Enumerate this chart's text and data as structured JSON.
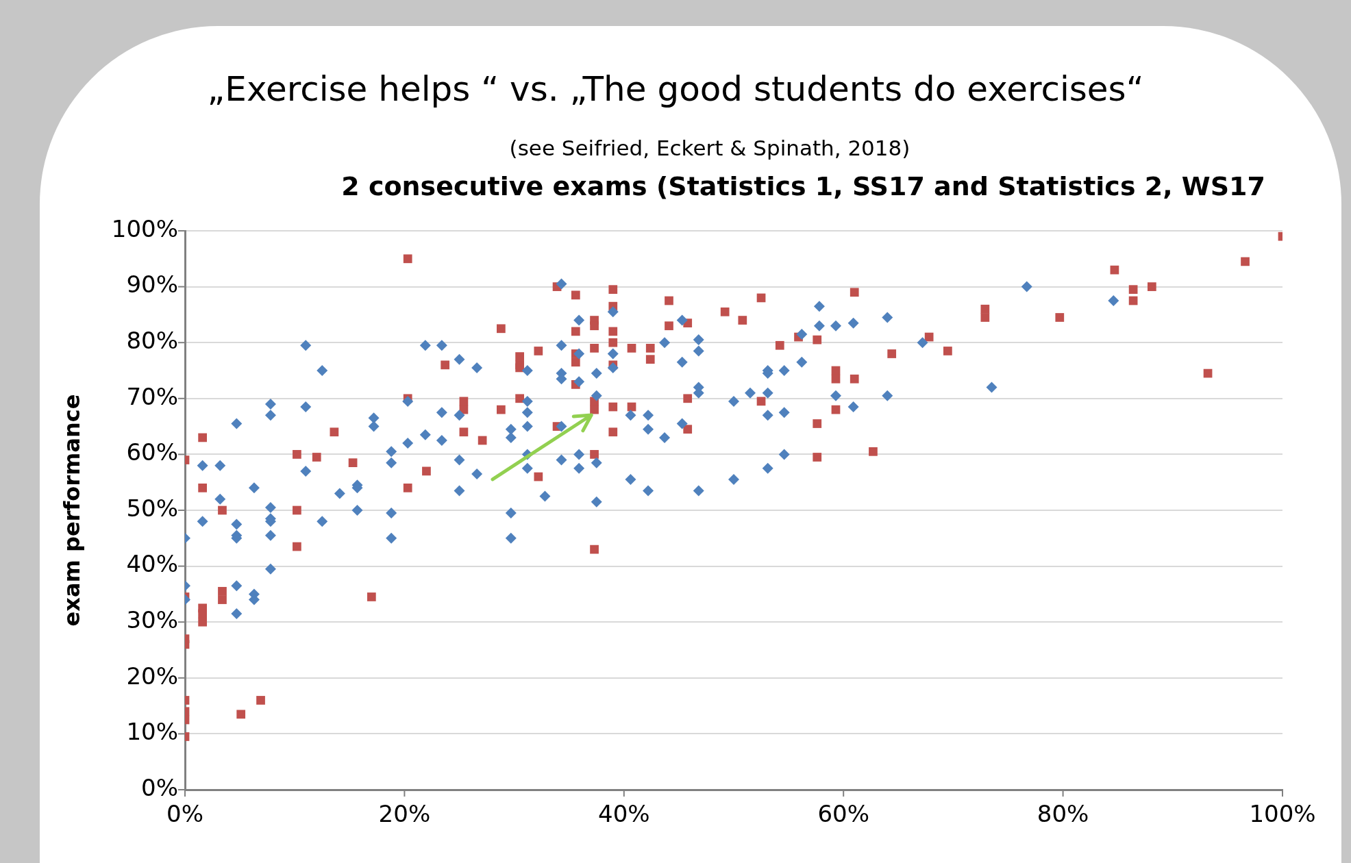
{
  "chart_data": {
    "type": "scatter",
    "title": "„Exercise helps “ vs. „The good students do exercises“",
    "subtitle": "(see Seifried, Eckert & Spinath, 2018)",
    "annotations": [
      "2 consecutive exams (Statistics 1, SS17 and Statistics 2, WS17"
    ],
    "ylabel": "exam performance",
    "xlim": [
      0,
      100
    ],
    "ylim": [
      0,
      100
    ],
    "xticks": [
      {
        "value": 0,
        "label": "0%"
      },
      {
        "value": 20,
        "label": "20%"
      },
      {
        "value": 40,
        "label": "40%"
      },
      {
        "value": 60,
        "label": "60%"
      },
      {
        "value": 80,
        "label": "80%"
      },
      {
        "value": 100,
        "label": "100%"
      }
    ],
    "yticks": [
      {
        "value": 0,
        "label": "0%"
      },
      {
        "value": 10,
        "label": "10%"
      },
      {
        "value": 20,
        "label": "20%"
      },
      {
        "value": 30,
        "label": "30%"
      },
      {
        "value": 40,
        "label": "40%"
      },
      {
        "value": 50,
        "label": "50%"
      },
      {
        "value": 60,
        "label": "60%"
      },
      {
        "value": 70,
        "label": "70%"
      },
      {
        "value": 80,
        "label": "80%"
      },
      {
        "value": 90,
        "label": "90%"
      },
      {
        "value": 100,
        "label": "100%"
      }
    ],
    "grid": "y",
    "legend": false,
    "series": [
      {
        "color": "#4f81bd",
        "marker": "diamond",
        "x": [
          0,
          0,
          0,
          1.6,
          1.6,
          3.2,
          3.2,
          4.7,
          4.7,
          4.7,
          4.7,
          4.7,
          4.7,
          6.3,
          6.3,
          6.3,
          7.8,
          7.8,
          7.8,
          7.8,
          7.8,
          7.8,
          7.8,
          11,
          11,
          11,
          12.5,
          12.5,
          14.1,
          15.7,
          15.7,
          15.7,
          17.2,
          17.2,
          18.8,
          18.8,
          18.8,
          18.8,
          20.3,
          20.3,
          21.9,
          21.9,
          23.4,
          23.4,
          23.4,
          25,
          25,
          25,
          25,
          26.6,
          26.6,
          29.7,
          29.7,
          29.7,
          29.7,
          31.2,
          31.2,
          31.2,
          31.2,
          31.2,
          31.2,
          32.8,
          34.3,
          34.3,
          34.3,
          34.3,
          34.3,
          34.3,
          35.9,
          35.9,
          35.9,
          35.9,
          35.9,
          37.5,
          37.5,
          37.5,
          37.5,
          39,
          39,
          39,
          40.6,
          40.6,
          42.2,
          42.2,
          42.2,
          43.7,
          43.7,
          45.3,
          45.3,
          45.3,
          46.8,
          46.8,
          46.8,
          46.8,
          46.8,
          50,
          50,
          51.5,
          53.1,
          53.1,
          53.1,
          53.1,
          53.1,
          54.6,
          54.6,
          54.6,
          56.2,
          56.2,
          57.8,
          57.8,
          59.3,
          59.3,
          60.9,
          60.9,
          64,
          64,
          67.2,
          73.5,
          76.7,
          84.6
        ],
        "values": [
          45,
          36.5,
          34,
          58,
          48,
          58,
          52,
          65.5,
          47.5,
          45.5,
          45,
          36.5,
          31.5,
          54,
          35,
          34,
          69,
          67,
          50.5,
          48.5,
          48,
          45.5,
          39.5,
          79.5,
          68.5,
          57,
          75,
          48,
          53,
          54.5,
          54,
          50,
          66.5,
          65,
          60.5,
          58.5,
          49.5,
          45,
          69.5,
          62,
          79.5,
          63.5,
          79.5,
          67.5,
          62.5,
          77,
          67,
          59,
          53.5,
          75.5,
          56.5,
          64.5,
          63,
          49.5,
          45,
          75,
          69.5,
          67.5,
          65,
          60,
          57.5,
          52.5,
          90.5,
          79.5,
          74.5,
          73.5,
          65,
          59,
          84,
          78,
          73,
          60,
          57.5,
          74.5,
          70.5,
          58.5,
          51.5,
          85.5,
          78,
          75.5,
          67,
          55.5,
          67,
          64.5,
          53.5,
          80,
          63,
          84,
          76.5,
          65.5,
          80.5,
          78.5,
          72,
          71,
          53.5,
          69.5,
          55.5,
          71,
          75,
          74.5,
          71,
          67,
          57.5,
          75,
          67.5,
          60,
          81.5,
          76.5,
          86.5,
          83,
          83,
          70.5,
          83.5,
          68.5,
          84.5,
          70.5,
          80,
          72,
          90,
          87.5
        ]
      },
      {
        "color": "#c0504d",
        "marker": "square",
        "x": [
          0,
          0,
          0,
          0,
          0,
          0,
          0,
          0,
          1.6,
          1.6,
          1.6,
          1.6,
          1.6,
          3.4,
          3.4,
          3.4,
          5.1,
          6.9,
          10.2,
          10.2,
          10.2,
          12,
          13.6,
          15.3,
          17,
          20.3,
          20.3,
          20.3,
          22,
          23.7,
          25.4,
          25.4,
          25.4,
          27.1,
          28.8,
          28.8,
          30.5,
          30.5,
          30.5,
          30.5,
          32.2,
          32.2,
          33.9,
          33.9,
          35.6,
          35.6,
          35.6,
          35.6,
          35.6,
          37.3,
          37.3,
          37.3,
          37.3,
          37.3,
          37.3,
          37.3,
          39,
          39,
          39,
          39,
          39,
          39,
          39,
          40.7,
          40.7,
          42.4,
          42.4,
          44.1,
          44.1,
          45.8,
          45.8,
          45.8,
          49.2,
          50.8,
          52.5,
          52.5,
          54.2,
          55.9,
          57.6,
          57.6,
          57.6,
          59.3,
          59.3,
          59.3,
          61,
          61,
          62.7,
          64.4,
          67.8,
          69.5,
          72.9,
          72.9,
          79.7,
          84.7,
          86.4,
          86.4,
          88.1,
          93.2,
          96.6,
          100
        ],
        "values": [
          59,
          34.5,
          27,
          26,
          16,
          14,
          12.5,
          9.5,
          63,
          54,
          32.5,
          31.5,
          30,
          50,
          35.5,
          34,
          13.5,
          16,
          60,
          50,
          43.5,
          59.5,
          64,
          58.5,
          34.5,
          95,
          70,
          54,
          57,
          76,
          69.5,
          68,
          64,
          62.5,
          82.5,
          68,
          77.5,
          76,
          75.5,
          70,
          78.5,
          56,
          90,
          65,
          88.5,
          82,
          78,
          76.5,
          72.5,
          84,
          83,
          79,
          69.5,
          68,
          60,
          43,
          89.5,
          86.5,
          82,
          80,
          76,
          68.5,
          64,
          79,
          68.5,
          79,
          77,
          87.5,
          83,
          83.5,
          70,
          64.5,
          85.5,
          84,
          88,
          69.5,
          79.5,
          81,
          80.5,
          65.5,
          59.5,
          75,
          73.5,
          68,
          89,
          73.5,
          60.5,
          78,
          81,
          78.5,
          86,
          84.5,
          84.5,
          93,
          89.5,
          87.5,
          90,
          74.5,
          94.5,
          99
        ]
      }
    ]
  }
}
